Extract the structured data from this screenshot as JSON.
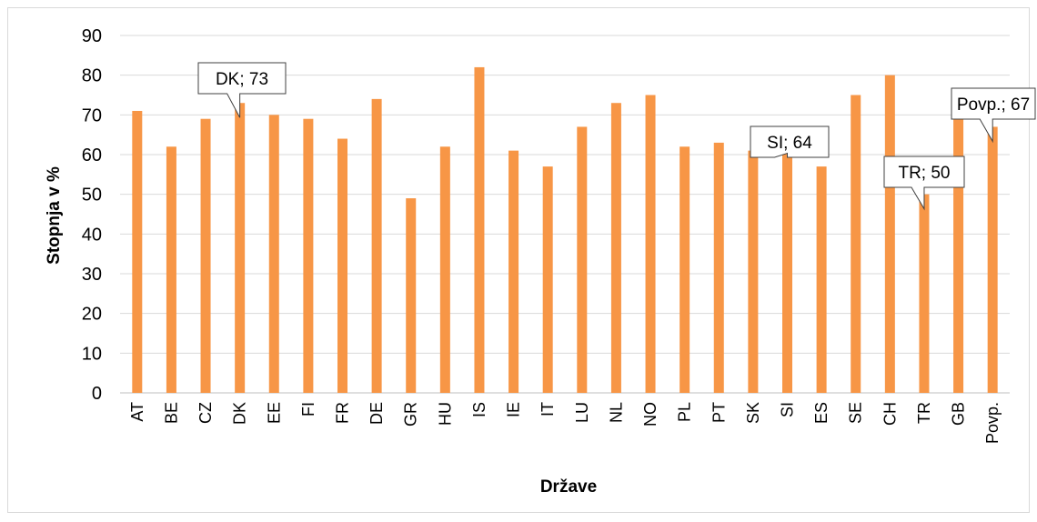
{
  "chart_data": {
    "type": "bar",
    "title": "",
    "xlabel": "Države",
    "ylabel": "Stopnja v %",
    "ylim": [
      0,
      90
    ],
    "yticks": [
      0,
      10,
      20,
      30,
      40,
      50,
      60,
      70,
      80,
      90
    ],
    "grid": true,
    "legend": "none",
    "bar_color": "#F79646",
    "categories": [
      "AT",
      "BE",
      "CZ",
      "DK",
      "EE",
      "FI",
      "FR",
      "DE",
      "GR",
      "HU",
      "IS",
      "IE",
      "IT",
      "LU",
      "NL",
      "NO",
      "PL",
      "PT",
      "SK",
      "SI",
      "ES",
      "SE",
      "CH",
      "TR",
      "GB",
      "Povp."
    ],
    "series": [
      {
        "values": [
          71,
          62,
          69,
          73,
          70,
          69,
          64,
          74,
          49,
          62,
          82,
          61,
          57,
          67,
          73,
          75,
          62,
          63,
          61,
          64,
          57,
          75,
          80,
          50,
          69,
          67
        ]
      }
    ],
    "annotations": [
      {
        "category": "DK",
        "text": "DK; 73"
      },
      {
        "category": "SI",
        "text": "SI; 64"
      },
      {
        "category": "TR",
        "text": "TR; 50"
      },
      {
        "category": "Povp.",
        "text": "Povp.; 67"
      }
    ]
  }
}
